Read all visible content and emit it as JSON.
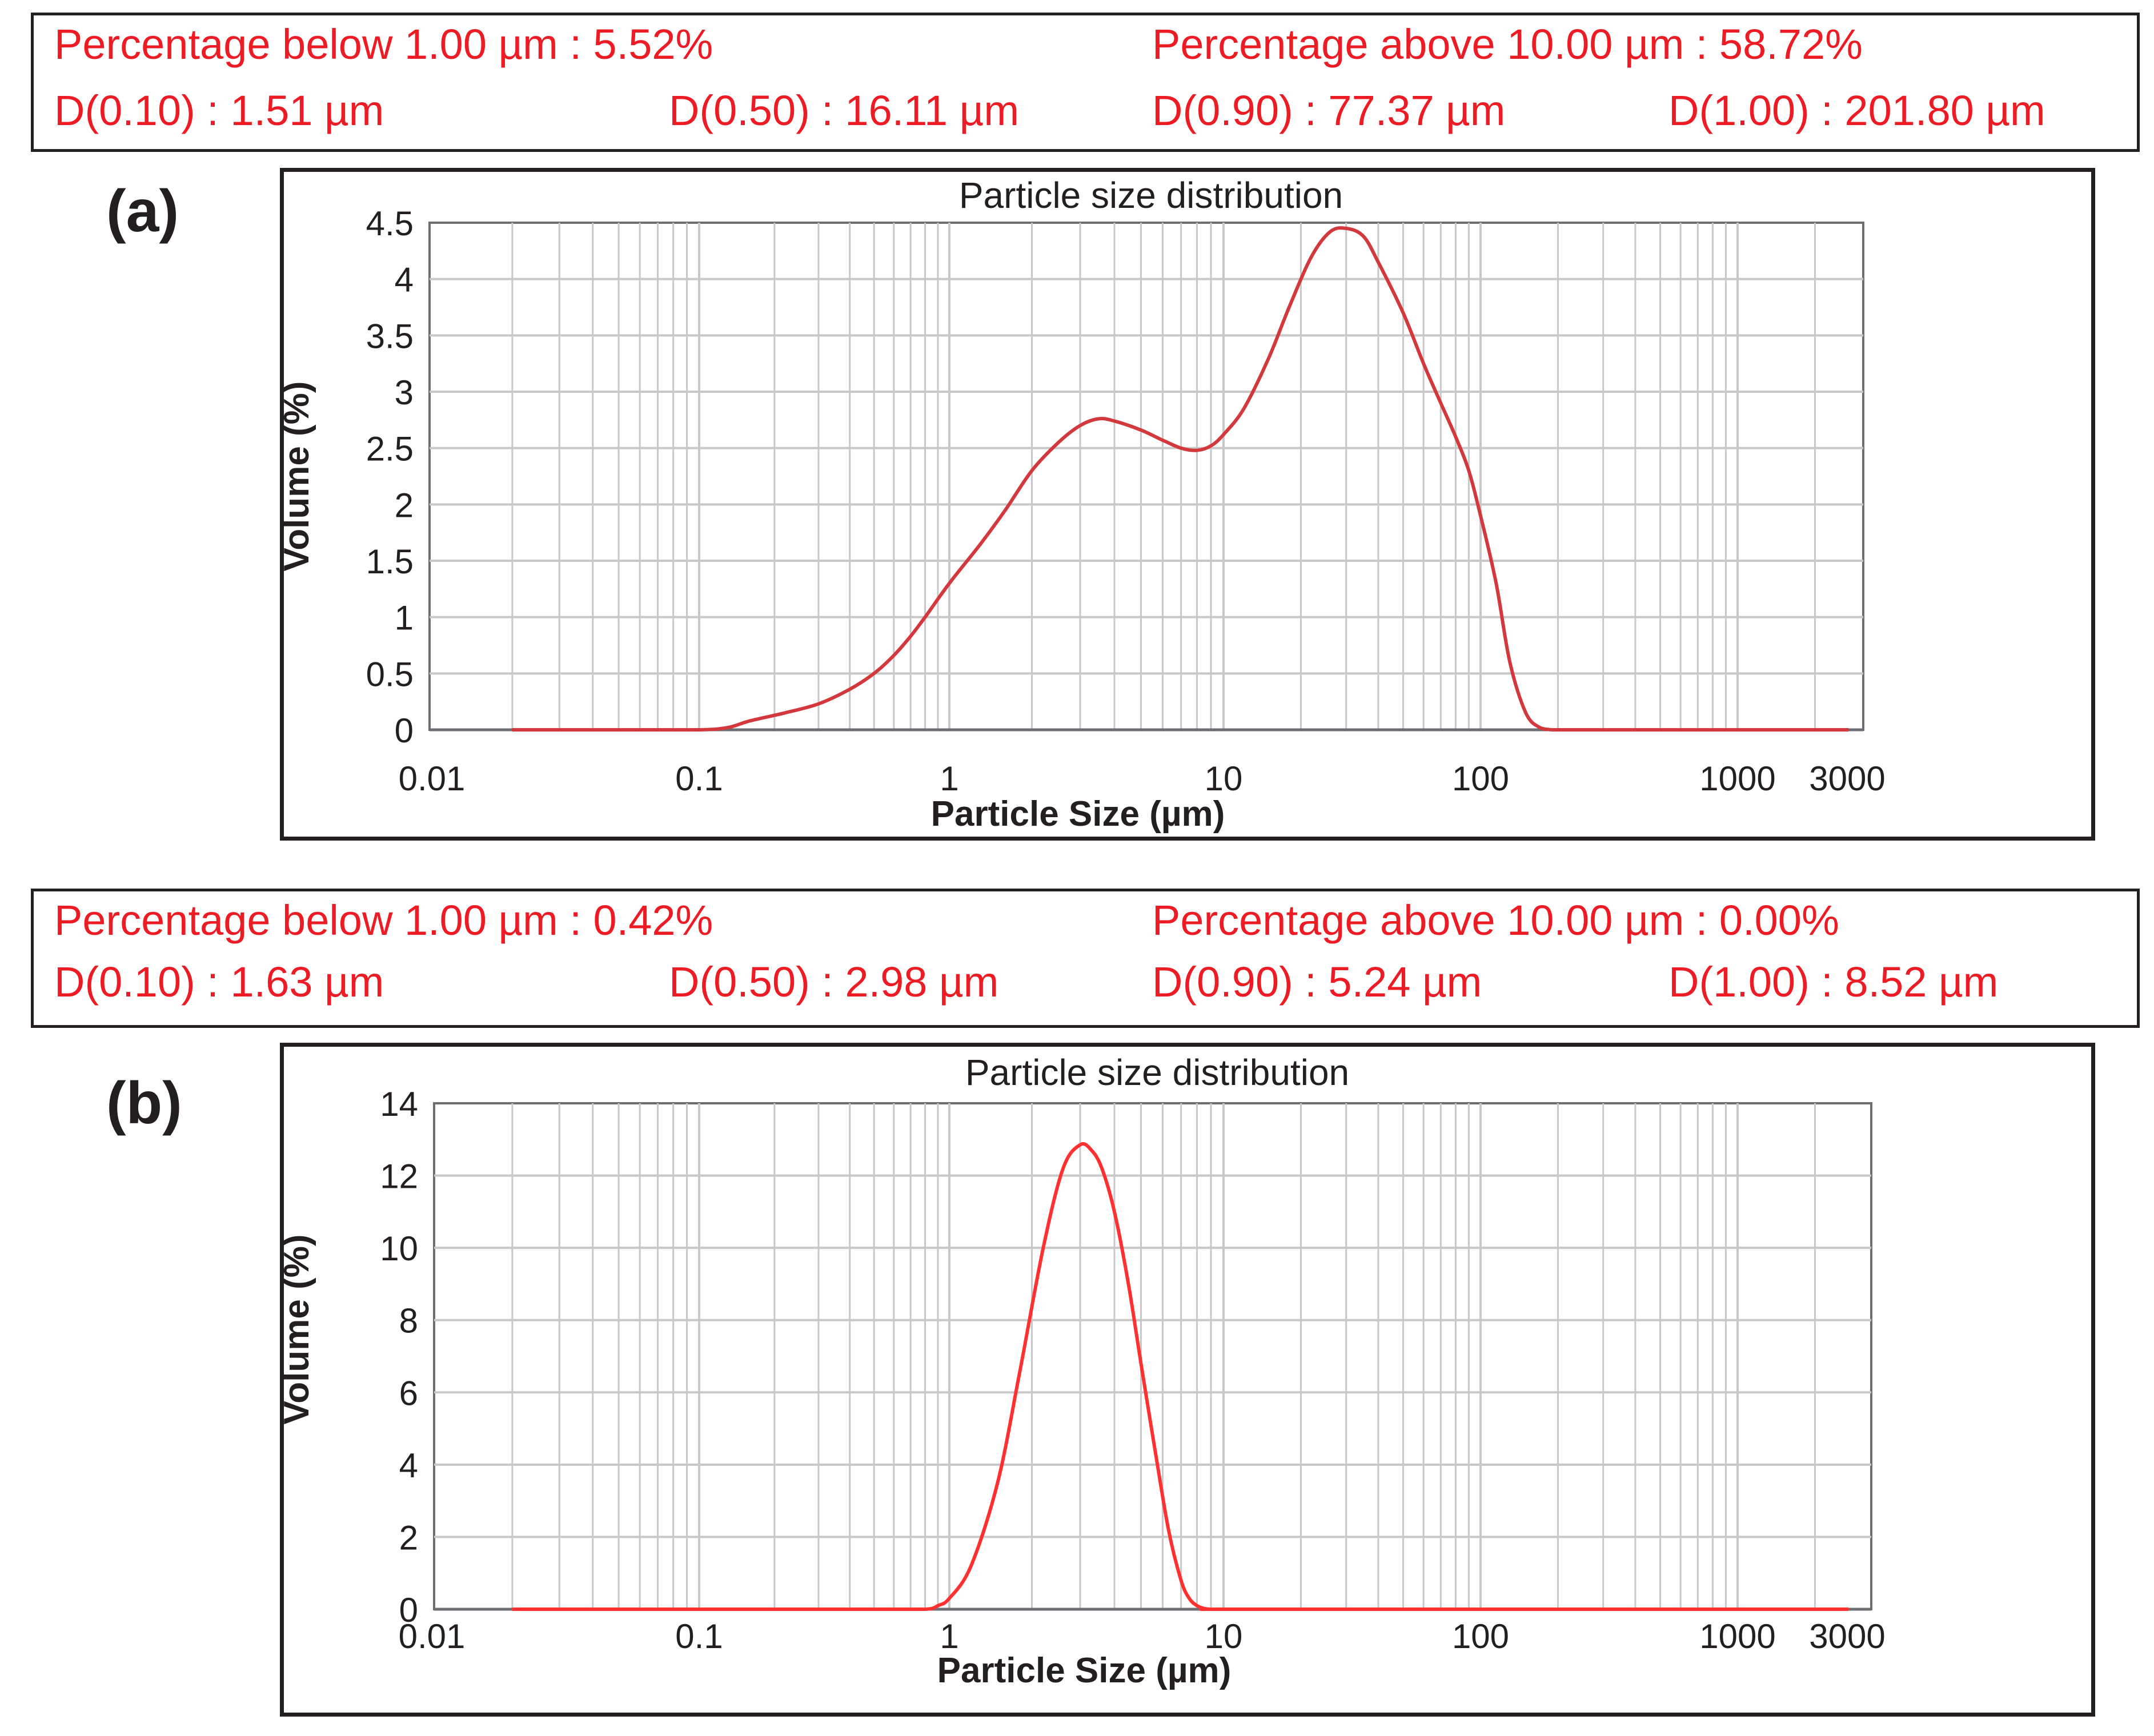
{
  "figure": {
    "panels": [
      {
        "label": "(a)",
        "stats": {
          "pct_below": "Percentage below 1.00 µm : 5.52%",
          "pct_above": "Percentage above 10.00 µm : 58.72%",
          "d10": "D(0.10) : 1.51 µm",
          "d50": "D(0.50) : 16.11 µm",
          "d90": "D(0.90) : 77.37 µm",
          "d100": "D(1.00) : 201.80 µm"
        }
      },
      {
        "label": "(b)",
        "stats": {
          "pct_below": "Percentage below 1.00 µm : 0.42%",
          "pct_above": "Percentage above 10.00 µm : 0.00%",
          "d10": "D(0.10) : 1.63 µm",
          "d50": "D(0.50) : 2.98 µm",
          "d90": "D(0.90) : 5.24 µm",
          "d100": "D(1.00) : 8.52 µm"
        }
      }
    ]
  },
  "colors": {
    "curve": "#d2383c",
    "curve_b": "#ff3030",
    "stat_text": "#ed1c24",
    "grid": "#c8c8c8",
    "frame": "#231f20"
  },
  "chart_data": [
    {
      "type": "line",
      "title": "Particle size distribution",
      "xlabel": "Particle Size (µm)",
      "ylabel": "Volume (%)",
      "xscale": "log",
      "xlim": [
        0.01,
        3000
      ],
      "ylim": [
        0,
        4.5
      ],
      "xticks": [
        0.01,
        0.1,
        1,
        10,
        100,
        1000,
        3000
      ],
      "xtick_labels": [
        "0.01",
        "0.1",
        "1",
        "10",
        "100",
        "1000",
        "3000"
      ],
      "yticks": [
        0,
        0.5,
        1,
        1.5,
        2,
        2.5,
        3,
        3.5,
        4,
        4.5
      ],
      "ytick_labels": [
        "0",
        "0.5",
        "1",
        "1.5",
        "2",
        "2.5",
        "3",
        "3.5",
        "4",
        "4.5"
      ],
      "grid": true,
      "series": [
        {
          "name": "Volume (%)",
          "x": [
            0.02,
            0.05,
            0.1,
            0.13,
            0.16,
            0.22,
            0.3,
            0.4,
            0.5,
            0.6,
            0.7,
            0.8,
            1.0,
            1.3,
            1.6,
            2.0,
            2.5,
            3.0,
            3.5,
            4.0,
            5.0,
            6.0,
            7.0,
            8.0,
            9.0,
            10,
            12,
            15,
            18,
            22,
            26,
            30,
            35,
            40,
            50,
            60,
            70,
            80,
            90,
            100,
            115,
            130,
            150,
            170,
            190,
            200,
            300,
            500,
            1000,
            2000,
            2700
          ],
          "y": [
            0,
            0,
            0,
            0.02,
            0.08,
            0.15,
            0.23,
            0.36,
            0.5,
            0.66,
            0.83,
            1.0,
            1.3,
            1.65,
            1.95,
            2.3,
            2.55,
            2.7,
            2.76,
            2.74,
            2.66,
            2.57,
            2.5,
            2.48,
            2.52,
            2.62,
            2.85,
            3.3,
            3.75,
            4.2,
            4.42,
            4.45,
            4.38,
            4.15,
            3.7,
            3.25,
            2.9,
            2.6,
            2.3,
            1.9,
            1.3,
            0.6,
            0.15,
            0.02,
            0,
            0,
            0,
            0,
            0,
            0,
            0
          ]
        }
      ]
    },
    {
      "type": "line",
      "title": "Particle size distribution",
      "xlabel": "Particle Size (µm)",
      "ylabel": "Volume (%)",
      "xscale": "log",
      "xlim": [
        0.01,
        3000
      ],
      "ylim": [
        0,
        14
      ],
      "xticks": [
        0.01,
        0.1,
        1,
        10,
        100,
        1000,
        3000
      ],
      "xtick_labels": [
        "0.01",
        "0.1",
        "1",
        "10",
        "100",
        "1000",
        "3000"
      ],
      "yticks": [
        0,
        2,
        4,
        6,
        8,
        10,
        12,
        14
      ],
      "ytick_labels": [
        "0",
        "2",
        "4",
        "6",
        "8",
        "10",
        "12",
        "14"
      ],
      "grid": true,
      "series": [
        {
          "name": "Volume (%)",
          "x": [
            0.02,
            0.1,
            0.5,
            0.8,
            0.9,
            1.0,
            1.2,
            1.5,
            1.8,
            2.2,
            2.6,
            3.0,
            3.3,
            3.6,
            4.0,
            4.5,
            5.0,
            5.6,
            6.3,
            7.0,
            7.5,
            8.0,
            8.5,
            9.0,
            10,
            100,
            1000,
            2700
          ],
          "y": [
            0,
            0,
            0,
            0,
            0.1,
            0.3,
            1.2,
            3.5,
            6.5,
            10.0,
            12.2,
            12.85,
            12.7,
            12.2,
            11.0,
            9.0,
            6.8,
            4.5,
            2.2,
            0.8,
            0.3,
            0.1,
            0.02,
            0,
            0,
            0,
            0,
            0
          ]
        }
      ]
    }
  ]
}
